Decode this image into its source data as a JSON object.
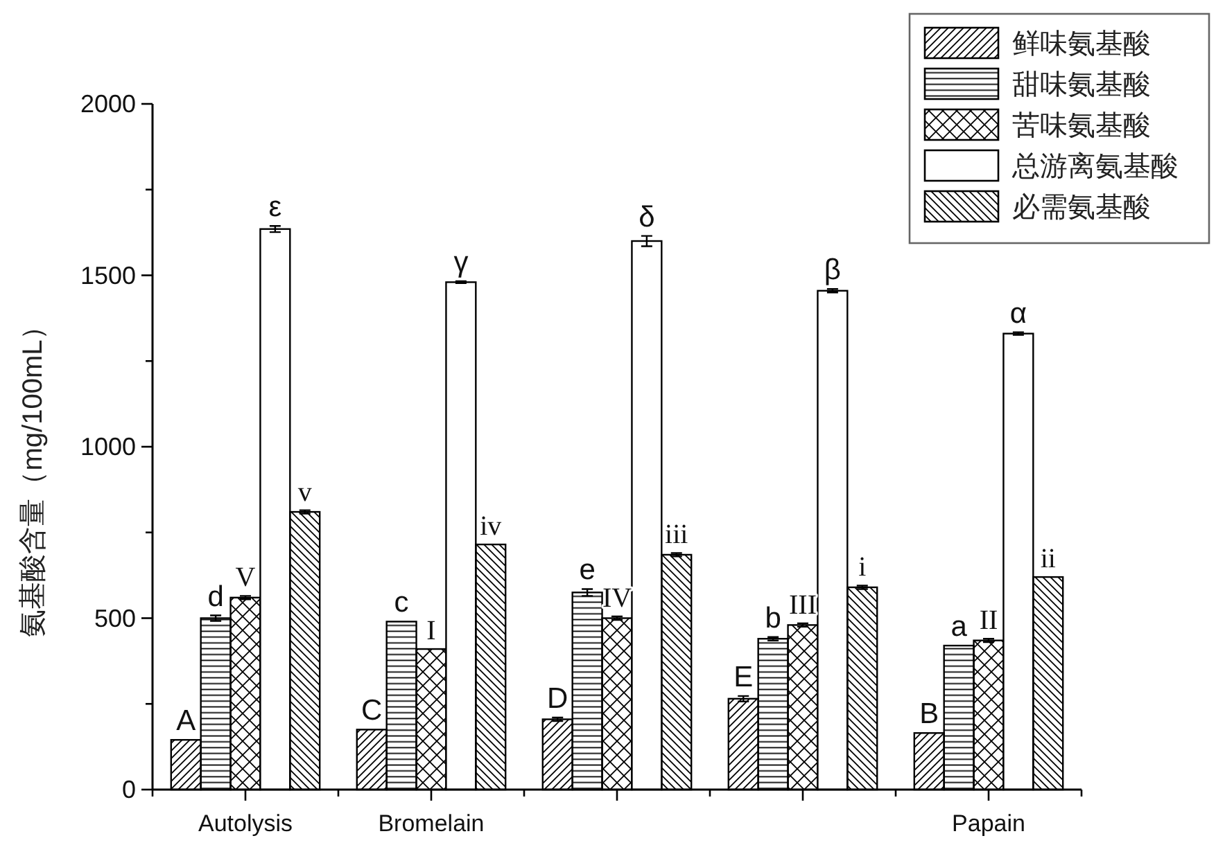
{
  "chart_data": {
    "type": "bar",
    "ylabel": "氨基酸含量（mg/100mL）",
    "categories": [
      "Autolysis",
      "Bromelain",
      null,
      null,
      "Papain"
    ],
    "series": [
      {
        "name": "鲜味氨基酸",
        "color": "#000000",
        "values": [
          145,
          175,
          205,
          265,
          165
        ],
        "errors": [
          null,
          null,
          5,
          8,
          null
        ],
        "value_labels": [
          "A",
          "C",
          "D",
          "E",
          "B"
        ]
      },
      {
        "name": "甜味氨基酸",
        "color": "#000000",
        "values": [
          500,
          490,
          575,
          440,
          420
        ],
        "errors": [
          8,
          null,
          10,
          5,
          null
        ],
        "value_labels": [
          "d",
          "c",
          "e",
          "b",
          "a"
        ]
      },
      {
        "name": "苦味氨基酸",
        "color": "#000000",
        "values": [
          560,
          410,
          500,
          480,
          435
        ],
        "errors": [
          5,
          null,
          5,
          5,
          5
        ],
        "value_labels": [
          "V",
          "I",
          "IV",
          "III",
          "II"
        ]
      },
      {
        "name": "总游离氨基酸",
        "color": "#000000",
        "values": [
          1635,
          1480,
          1600,
          1455,
          1330
        ],
        "errors": [
          9,
          3,
          15,
          5,
          4
        ],
        "value_labels": [
          "ε",
          "γ",
          "δ",
          "β",
          "α"
        ]
      },
      {
        "name": "必需氨基酸",
        "color": "#000000",
        "values": [
          810,
          715,
          685,
          590,
          620
        ],
        "errors": [
          5,
          null,
          5,
          5,
          null
        ],
        "value_labels": [
          "v",
          "iv",
          "iii",
          "i",
          "ii"
        ]
      }
    ],
    "ylim": [
      0,
      2000
    ],
    "yticks": [
      0,
      {
        "value": 250,
        "label": null
      },
      500,
      {
        "value": 750,
        "label": null
      },
      1000,
      {
        "value": 1250,
        "label": null
      },
      1500,
      {
        "value": 1750,
        "label": null
      },
      2000
    ],
    "legend": "top right"
  }
}
